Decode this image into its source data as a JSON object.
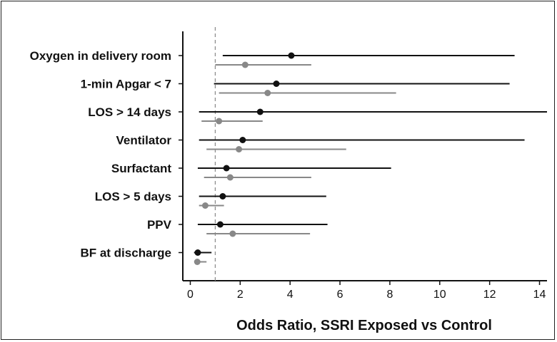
{
  "chart_data": {
    "type": "forest",
    "xlabel": "Odds Ratio, SSRI Exposed vs Control",
    "xlim": [
      -0.3,
      14.3
    ],
    "xticks": [
      0,
      2,
      4,
      6,
      8,
      10,
      12,
      14
    ],
    "xtick_labels": [
      "0",
      "2",
      "4",
      "6",
      "8",
      "10",
      "12",
      "14"
    ],
    "reference_line": 1,
    "categories": [
      "Oxygen in delivery room",
      "1-min Apgar < 7",
      "LOS > 14 days",
      "Ventilator",
      "Surfactant",
      "LOS > 5 days",
      "PPV",
      "BF at discharge"
    ],
    "series": [
      {
        "color": "#111111",
        "points": [
          {
            "estimate": 4.05,
            "lower": 1.3,
            "upper": 13.0
          },
          {
            "estimate": 3.45,
            "lower": 0.95,
            "upper": 12.8
          },
          {
            "estimate": 2.8,
            "lower": 0.35,
            "upper": 14.3
          },
          {
            "estimate": 2.1,
            "lower": 0.35,
            "upper": 13.4
          },
          {
            "estimate": 1.45,
            "lower": 0.3,
            "upper": 8.05
          },
          {
            "estimate": 1.3,
            "lower": 0.35,
            "upper": 5.45
          },
          {
            "estimate": 1.2,
            "lower": 0.3,
            "upper": 5.5
          },
          {
            "estimate": 0.3,
            "lower": 0.15,
            "upper": 0.85
          }
        ]
      },
      {
        "color": "#888888",
        "points": [
          {
            "estimate": 2.2,
            "lower": 1.0,
            "upper": 4.85
          },
          {
            "estimate": 3.1,
            "lower": 1.15,
            "upper": 8.25
          },
          {
            "estimate": 1.15,
            "lower": 0.45,
            "upper": 2.9
          },
          {
            "estimate": 1.95,
            "lower": 0.65,
            "upper": 6.25
          },
          {
            "estimate": 1.6,
            "lower": 0.55,
            "upper": 4.85
          },
          {
            "estimate": 0.6,
            "lower": 0.35,
            "upper": 1.35
          },
          {
            "estimate": 1.7,
            "lower": 0.65,
            "upper": 4.8
          },
          {
            "estimate": 0.28,
            "lower": 0.2,
            "upper": 0.65
          }
        ]
      }
    ]
  }
}
